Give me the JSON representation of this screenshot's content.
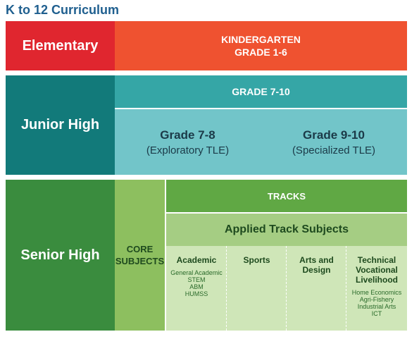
{
  "title": "K to 12 Curriculum",
  "elementary": {
    "label": "Elementary",
    "line1": "KINDERGARTEN",
    "line2": "GRADE 1-6",
    "colors": {
      "left": "#e0262f",
      "right": "#ef5230"
    }
  },
  "junior_high": {
    "label": "Junior High",
    "header": "GRADE 7-10",
    "left_grade": "Grade 7-8",
    "left_desc": "(Exploratory TLE)",
    "right_grade": "Grade 9-10",
    "right_desc": "(Specialized TLE)"
  },
  "senior_high": {
    "label": "Senior High",
    "core_line1": "CORE",
    "core_line2": "SUBJECTS",
    "tracks_header": "TRACKS",
    "applied": "Applied Track Subjects",
    "tracks": [
      {
        "name_lines": [
          "Academic"
        ],
        "items": [
          "General Academic",
          "STEM",
          "ABM",
          "HUMSS"
        ]
      },
      {
        "name_lines": [
          "Sports"
        ],
        "items": []
      },
      {
        "name_lines": [
          "Arts and",
          "Design"
        ],
        "items": []
      },
      {
        "name_lines": [
          "Technical",
          "Vocational",
          "Livelihood"
        ],
        "items": [
          "Home Economics",
          "Agri-Fishery",
          "Industrial Arts",
          "ICT"
        ]
      }
    ]
  }
}
